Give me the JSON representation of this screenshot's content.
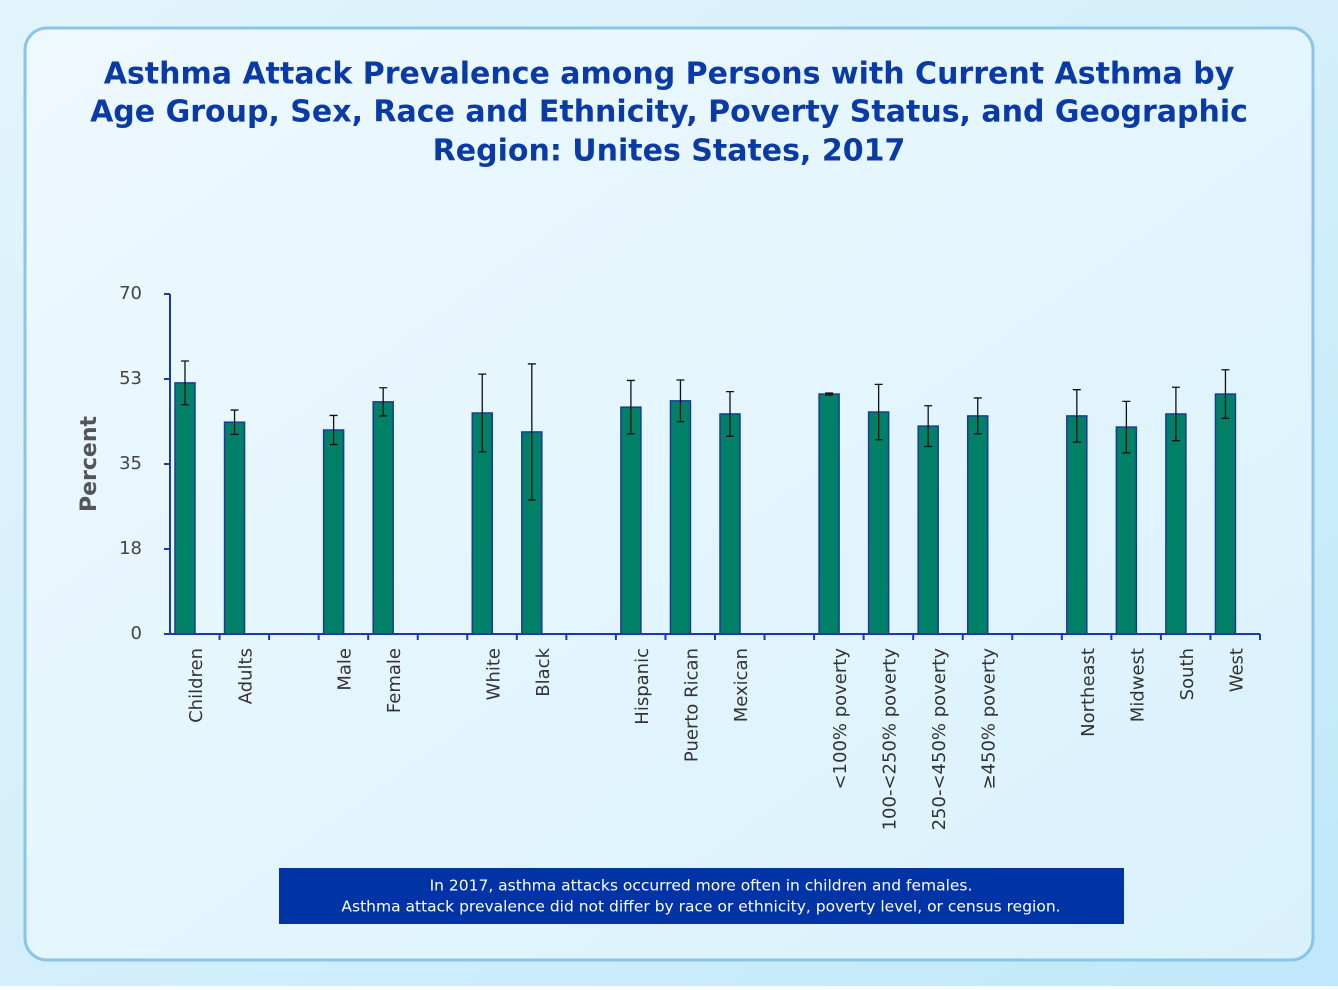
{
  "chart_data": {
    "type": "bar",
    "title": [
      "Asthma Attack Prevalence among Persons with Current Asthma by",
      "Age Group, Sex, Race and Ethnicity, Poverty Status, and Geographic",
      "Region: Unites States, 2017"
    ],
    "y_label": "Percent",
    "categories": [
      "Children",
      "Adults",
      null,
      "Male",
      "Female",
      null,
      "White",
      "Black",
      null,
      "Hispanic",
      "Puerto Rican",
      "Mexican",
      null,
      "<100% poverty",
      "100-<250% poverty",
      "250-<450% poverty",
      "≥450% poverty",
      null,
      "Northeast",
      "Midwest",
      "South",
      "West"
    ],
    "values": [
      51.7,
      43.6,
      null,
      42.0,
      47.8,
      null,
      45.5,
      41.6,
      null,
      46.7,
      48.0,
      45.3,
      null,
      49.4,
      45.7,
      42.8,
      44.9,
      null,
      44.9,
      42.6,
      45.3,
      49.4
    ],
    "errors": [
      4.5,
      2.5,
      null,
      3.0,
      2.9,
      null,
      8.0,
      14.0,
      null,
      5.5,
      4.3,
      4.6,
      null,
      0.2,
      5.7,
      4.2,
      3.7,
      null,
      5.4,
      5.3,
      5.5,
      5.0
    ],
    "color": "#008066",
    "ylim": [
      0,
      70
    ],
    "yticks": [
      0,
      {
        "value": 17.5,
        "label": "18"
      },
      35,
      {
        "value": 52.5,
        "label": "53"
      },
      70
    ],
    "annotation": [
      "In 2017, asthma attacks occurred more often in children and females.",
      "Asthma attack prevalence did not differ by race or ethnicity, poverty level, or census region."
    ]
  }
}
